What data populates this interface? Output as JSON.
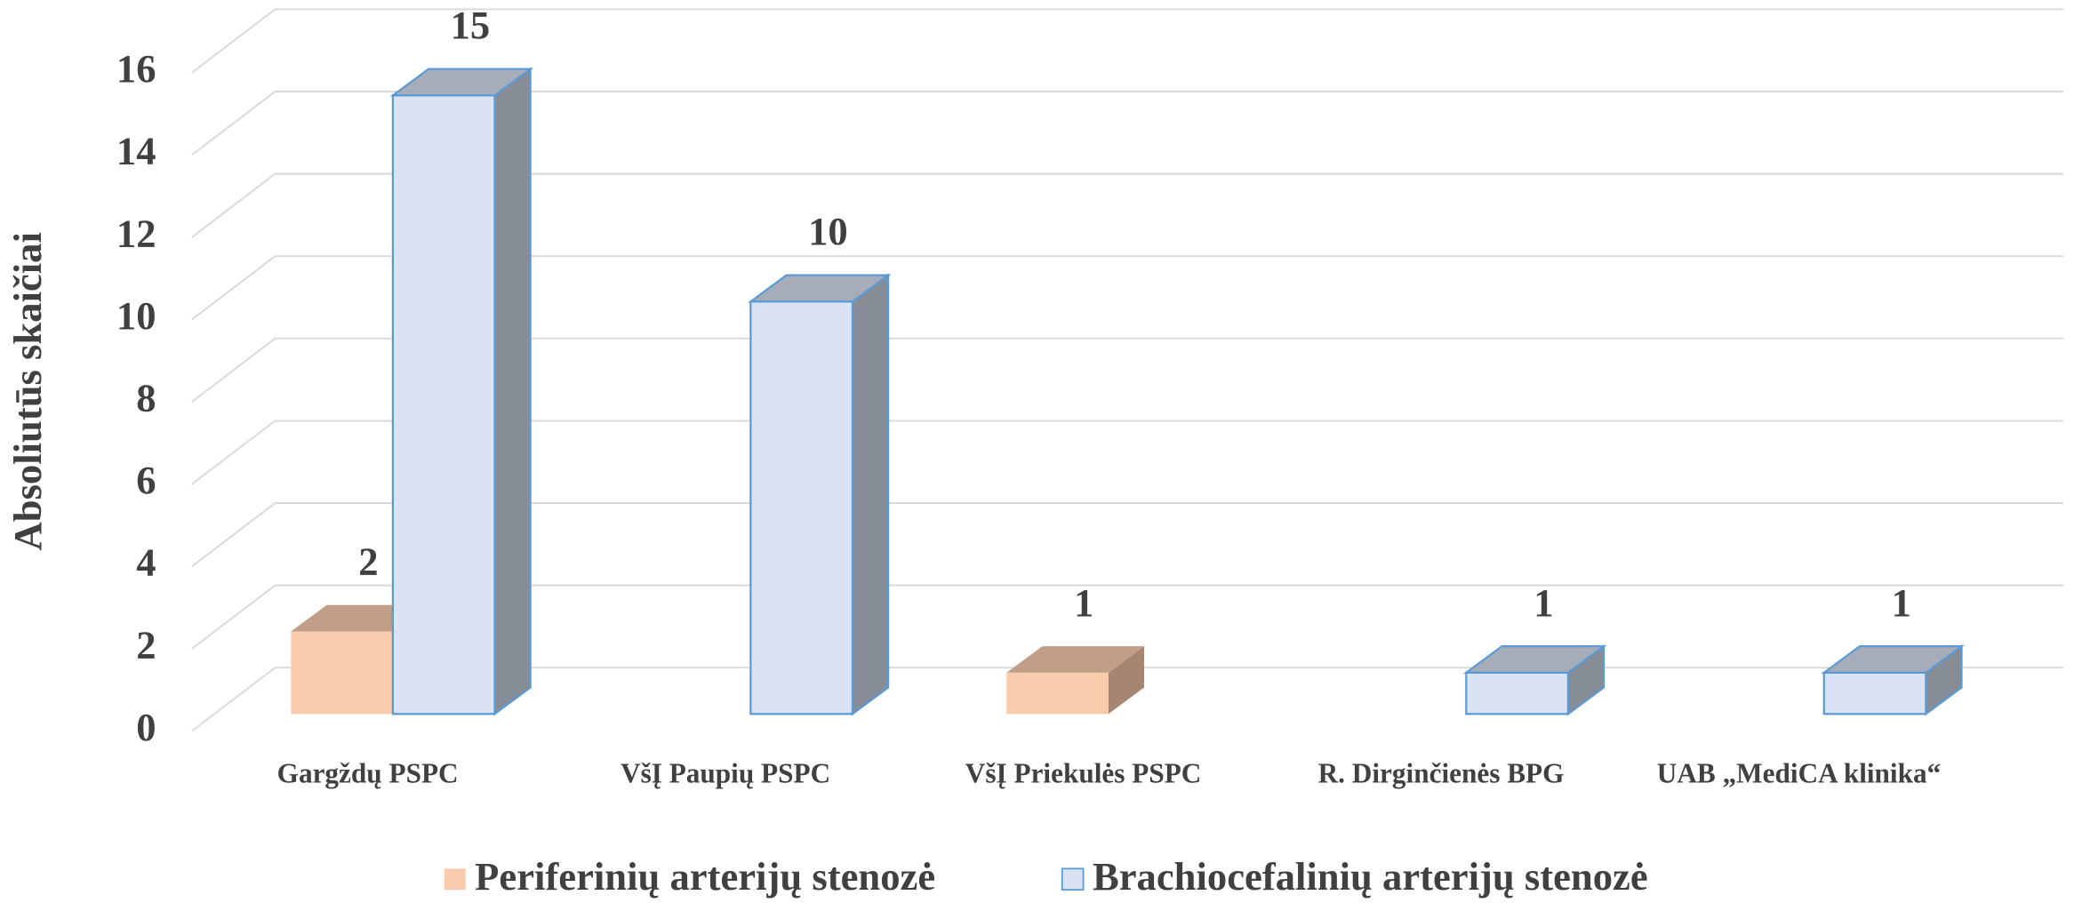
{
  "chart_data": {
    "type": "bar3d",
    "y_label": "Absoliutūs skaičiai",
    "categories": [
      "Gargždų PSPC",
      "VšĮ Paupių PSPC",
      "VšĮ Priekulės PSPC",
      "R. Dirginčienės BPG",
      "UAB „MediCA klinika“"
    ],
    "series": [
      {
        "name": "Periferinių arterijų stenozė",
        "color": "#f8cbad",
        "values": [
          2,
          null,
          1,
          null,
          null
        ]
      },
      {
        "name": "Brachiocefalinių arterijų stenozė",
        "color": "#dae3f3",
        "values": [
          15,
          10,
          null,
          1,
          1
        ]
      }
    ],
    "ylim": [
      0,
      16
    ],
    "yticks": [
      0,
      2,
      4,
      6,
      8,
      10,
      12,
      14,
      16
    ],
    "grid": true,
    "legend": "bottom"
  }
}
